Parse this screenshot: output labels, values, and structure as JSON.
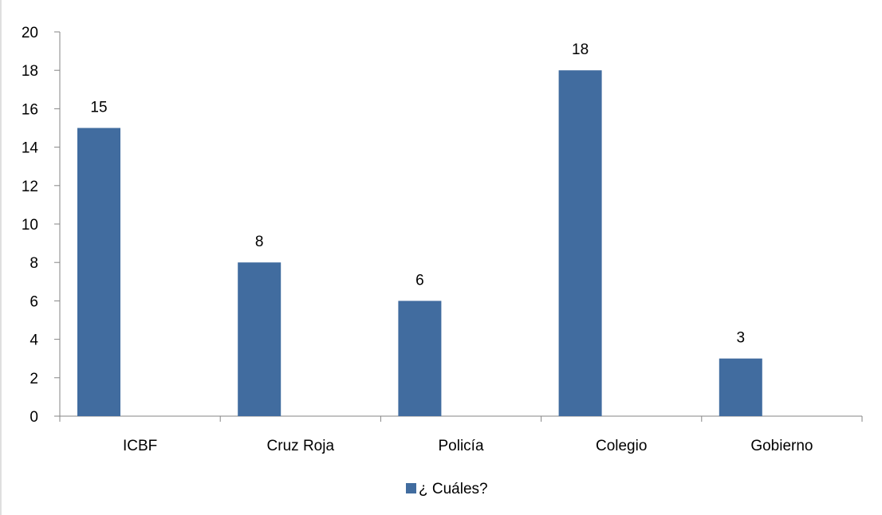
{
  "chart_data": {
    "type": "bar",
    "categories": [
      "ICBF",
      "Cruz Roja",
      "Policía",
      "Colegio",
      "Gobierno"
    ],
    "series": [
      {
        "name": "¿ Cuáles?",
        "values": [
          15,
          8,
          6,
          18,
          3
        ],
        "color": "#416C9F"
      }
    ],
    "ylim": [
      0,
      20
    ],
    "yticks": [
      0,
      2,
      4,
      6,
      8,
      10,
      12,
      14,
      16,
      18,
      20
    ],
    "data_labels": true,
    "grid": false,
    "legend_position": "bottom"
  }
}
